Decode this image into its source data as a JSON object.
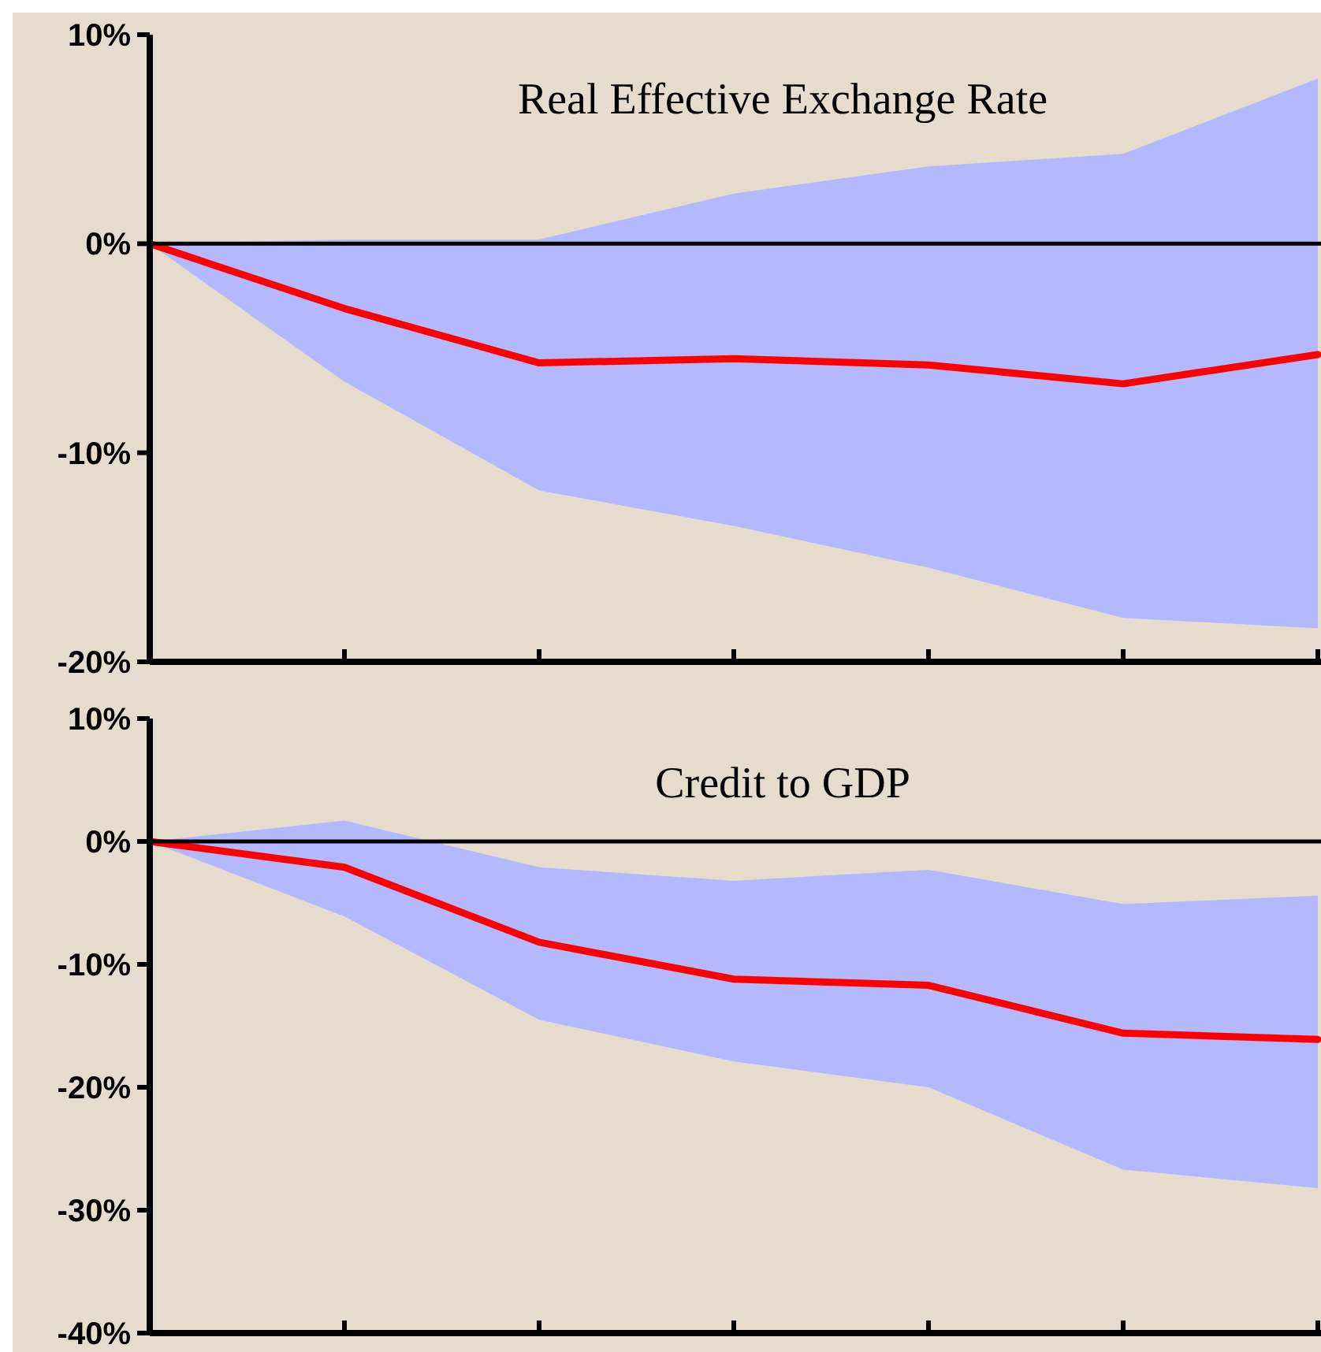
{
  "chart_data": [
    {
      "type": "line",
      "title": "Real Effective Exchange Rate",
      "categories": [
        null,
        null,
        null,
        null,
        null,
        null,
        null
      ],
      "series": [
        {
          "color": "#ff0000",
          "values": [
            0,
            -3.1,
            -5.7,
            -5.5,
            -5.8,
            -6.7,
            -5.3
          ],
          "lower": [
            0,
            -6.6,
            -11.8,
            -13.5,
            -15.5,
            -17.9,
            -18.4
          ],
          "upper": [
            0,
            0.2,
            0.2,
            2.4,
            3.7,
            4.3,
            7.9
          ]
        }
      ],
      "ylim": [
        -20,
        10
      ],
      "yticks": [
        {
          "value": -20,
          "label": "-20%"
        },
        {
          "value": -10,
          "label": "-10%"
        },
        {
          "value": 0,
          "label": "0%"
        },
        {
          "value": 10,
          "label": "10%"
        }
      ],
      "ref_lines": [
        {
          "axis": "y",
          "value": 0,
          "color": "#000000"
        }
      ],
      "tick_labels": "y",
      "grid": false,
      "marker": "none",
      "line_style": "solid"
    },
    {
      "type": "line",
      "title": "Credit to GDP",
      "categories": [
        null,
        null,
        null,
        null,
        null,
        null,
        null
      ],
      "series": [
        {
          "color": "#ff0000",
          "values": [
            0,
            -2.1,
            -8.2,
            -11.2,
            -11.7,
            -15.6,
            -16.1
          ],
          "lower": [
            0,
            -6.1,
            -14.5,
            -17.9,
            -20,
            -26.7,
            -28.2
          ],
          "upper": [
            0,
            1.7,
            -2.1,
            -3.2,
            -2.3,
            -5.1,
            -4.4
          ]
        }
      ],
      "ylim": [
        -40,
        10
      ],
      "yticks": [
        {
          "value": -40,
          "label": "-40%"
        },
        {
          "value": -30,
          "label": "-30%"
        },
        {
          "value": -20,
          "label": "-20%"
        },
        {
          "value": -10,
          "label": "-10%"
        },
        {
          "value": 0,
          "label": "0%"
        },
        {
          "value": 10,
          "label": "10%"
        }
      ],
      "ref_lines": [
        {
          "axis": "y",
          "value": 0,
          "color": "#000000"
        }
      ],
      "tick_labels": "y",
      "grid": false,
      "marker": "none",
      "line_style": "solid"
    }
  ]
}
